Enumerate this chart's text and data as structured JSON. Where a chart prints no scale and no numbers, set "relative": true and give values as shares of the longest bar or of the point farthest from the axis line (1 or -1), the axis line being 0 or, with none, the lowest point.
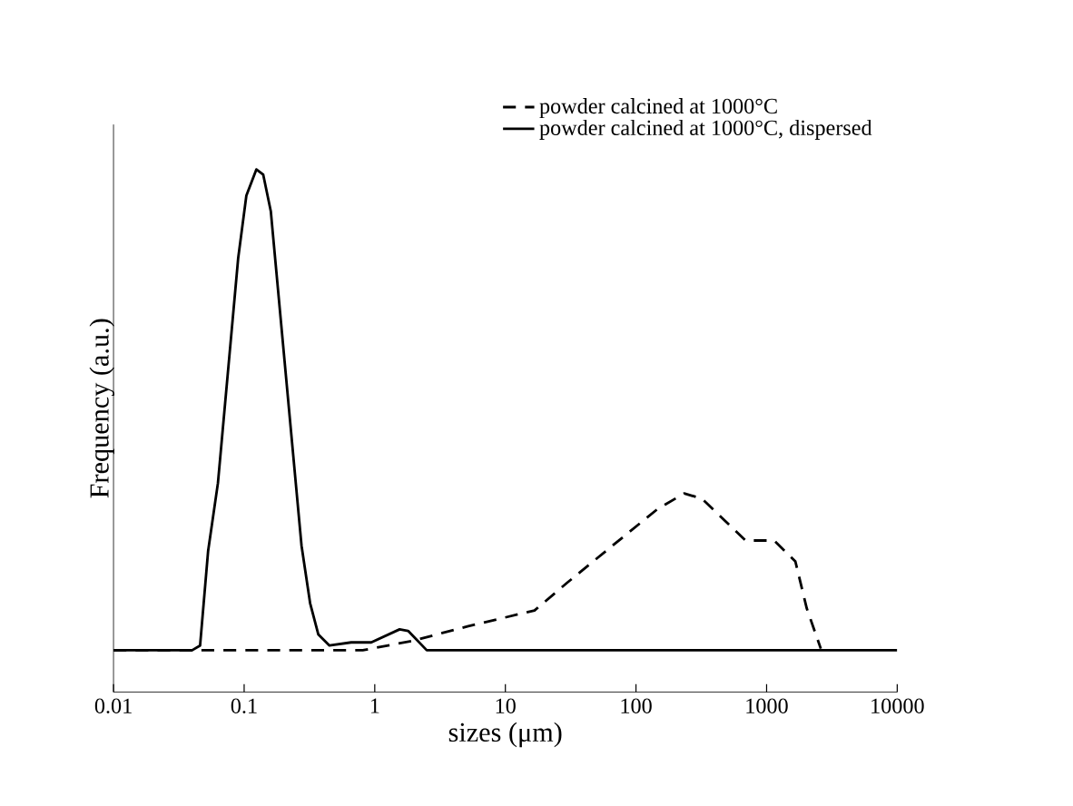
{
  "chart_data": {
    "type": "line",
    "xlabel": "sizes (μm)",
    "ylabel": "Frequency (a.u.)",
    "log": "x",
    "relative": true,
    "xlim": [
      0.01,
      10000
    ],
    "xticks": [
      0.01,
      0.1,
      1,
      10,
      100,
      1000,
      10000
    ],
    "tick_labels": "x",
    "legend": "top right",
    "grid": false,
    "marker": "none",
    "series": [
      {
        "name": "powder calcined at 1000°C",
        "color": "#000000",
        "line_style": "dashed",
        "x": [
          0.01,
          0.81,
          1.95,
          5.2,
          16.7,
          30,
          66,
          146,
          234,
          320,
          470,
          690,
          1140,
          1660,
          2030,
          2600
        ],
        "values": [
          0.08,
          0.08,
          0.098,
          0.126,
          0.156,
          0.21,
          0.28,
          0.35,
          0.38,
          0.37,
          0.33,
          0.29,
          0.29,
          0.25,
          0.16,
          0.083
        ]
      },
      {
        "name": "powder calcined at 1000°C, dispersed",
        "color": "#000000",
        "line_style": "solid",
        "x": [
          0.01,
          0.04,
          0.046,
          0.053,
          0.063,
          0.09,
          0.104,
          0.124,
          0.14,
          0.16,
          0.275,
          0.32,
          0.37,
          0.45,
          0.66,
          0.94,
          1.55,
          1.8,
          2.5,
          10000
        ],
        "values": [
          0.08,
          0.08,
          0.089,
          0.27,
          0.4,
          0.83,
          0.95,
          1.0,
          0.99,
          0.92,
          0.28,
          0.17,
          0.11,
          0.089,
          0.095,
          0.095,
          0.12,
          0.117,
          0.08,
          0.08
        ]
      }
    ]
  }
}
